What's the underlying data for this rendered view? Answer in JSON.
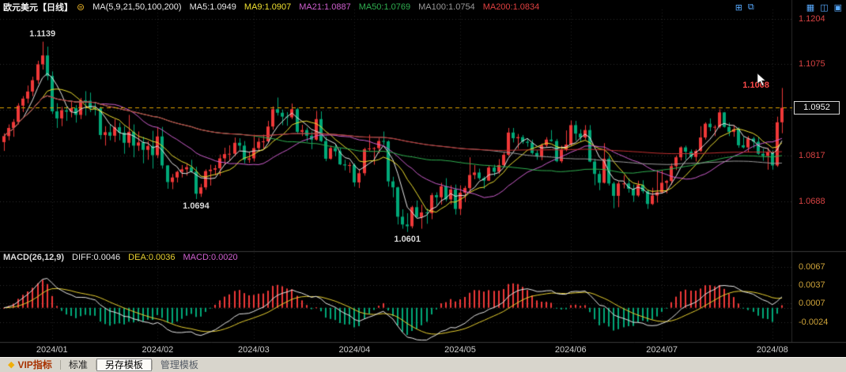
{
  "icons": {
    "period_menu": "⊜",
    "diamond": "◆",
    "add_window": "⊞",
    "pop_out": "⧉",
    "grid_layout": "▦",
    "split_layout": "◫",
    "single_layout": "▣"
  },
  "header": {
    "title": "欧元美元【日线】",
    "ma_label": "MA(5,9,21,50,100,200)",
    "ma_items": [
      {
        "text": "MA5:1.0949",
        "color": "#e8e8e8"
      },
      {
        "text": "MA9:1.0907",
        "color": "#efe030"
      },
      {
        "text": "MA21:1.0887",
        "color": "#cf5fcf"
      },
      {
        "text": "MA50:1.0769",
        "color": "#2faf50"
      },
      {
        "text": "MA100:1.0754",
        "color": "#9a9a9a"
      },
      {
        "text": "MA200:1.0834",
        "color": "#e04040"
      }
    ]
  },
  "macd_header": {
    "label": "MACD(26,12,9)",
    "items": [
      {
        "text": "DIFF:0.0046",
        "color": "#e8e8e8"
      },
      {
        "text": "DEA:0.0036",
        "color": "#e8d030"
      },
      {
        "text": "MACD:0.0020",
        "color": "#d060d0"
      }
    ]
  },
  "statusbar": {
    "tabs": [
      {
        "label": "VIP指标"
      },
      {
        "label": "标准"
      },
      {
        "label": "另存模板",
        "active": true
      },
      {
        "label": "管理模板"
      }
    ]
  },
  "chart_data": {
    "type": "candlestick",
    "symbol": "欧元美元",
    "period": "日线",
    "up_color": "#f03838",
    "down_color": "#00a878",
    "ma_periods": [
      5,
      9,
      21,
      50,
      100,
      200
    ],
    "ma_colors": [
      "#e8e8e8",
      "#efe030",
      "#cf5fcf",
      "#2faf50",
      "#9a9a9a",
      "#c23030"
    ],
    "macd_colors": {
      "diff": "#e8e8e8",
      "dea": "#e8d030"
    },
    "axis_colors": {
      "price": "#d84343",
      "time": "#cccccc",
      "macd": "#cfa43a"
    },
    "y_ticks": [
      1.1204,
      1.1075,
      1.0946,
      1.0817,
      1.0688
    ],
    "macd_ticks": [
      0.0067,
      0.0037,
      0.0007,
      -0.0024
    ],
    "x_ticks": [
      {
        "i": 10,
        "label": "2024/01"
      },
      {
        "i": 32,
        "label": "2024/02"
      },
      {
        "i": 52,
        "label": "2024/03"
      },
      {
        "i": 73,
        "label": "2024/04"
      },
      {
        "i": 95,
        "label": "2024/05"
      },
      {
        "i": 118,
        "label": "2024/06"
      },
      {
        "i": 137,
        "label": "2024/07"
      },
      {
        "i": 160,
        "label": "2024/08"
      }
    ],
    "reference_line": {
      "price": 1.0952,
      "color": "#e0a400",
      "style": "dashed"
    },
    "last_price": 1.0952,
    "last_price_label": "1.0952",
    "annotations": [
      {
        "i": 8,
        "price": 1.1139,
        "text": "1.1139",
        "pos": "above",
        "color": "#d8d8d8"
      },
      {
        "i": 40,
        "price": 1.0694,
        "text": "1.0694",
        "pos": "below",
        "color": "#d8d8d8"
      },
      {
        "i": 84,
        "price": 1.0601,
        "text": "1.0601",
        "pos": "below",
        "color": "#d8d8d8"
      },
      {
        "i": 162,
        "price": 1.1008,
        "text": "1.1008",
        "pos": "left",
        "color": "#ff4a4a"
      }
    ],
    "candles": [
      [
        1.0855,
        1.088,
        1.083,
        1.0872
      ],
      [
        1.0872,
        1.0905,
        1.086,
        1.0895
      ],
      [
        1.0895,
        1.092,
        1.087,
        1.0912
      ],
      [
        1.0912,
        1.0965,
        1.0905,
        1.0958
      ],
      [
        1.0958,
        1.0985,
        1.094,
        1.0978
      ],
      [
        1.0978,
        1.1015,
        1.0965,
        1.0998
      ],
      [
        1.0998,
        1.104,
        1.0985,
        1.103
      ],
      [
        1.103,
        1.1085,
        1.102,
        1.1075
      ],
      [
        1.1075,
        1.1139,
        1.106,
        1.11
      ],
      [
        1.11,
        1.1125,
        1.103,
        1.1042
      ],
      [
        1.1042,
        1.1055,
        1.0935,
        1.0942
      ],
      [
        1.0942,
        1.0965,
        1.0895,
        1.0922
      ],
      [
        1.0922,
        1.0955,
        1.09,
        1.0945
      ],
      [
        1.0945,
        1.0955,
        1.0915,
        1.0941
      ],
      [
        1.0941,
        1.097,
        1.0925,
        1.0951
      ],
      [
        1.0951,
        1.096,
        1.091,
        1.0932
      ],
      [
        1.0932,
        1.098,
        1.092,
        1.0973
      ],
      [
        1.0973,
        1.0999,
        1.093,
        1.0972
      ],
      [
        1.0972,
        1.0995,
        1.094,
        1.0951
      ],
      [
        1.0951,
        1.0967,
        1.093,
        1.095
      ],
      [
        1.095,
        1.0955,
        1.0863,
        1.0875
      ],
      [
        1.0875,
        1.09,
        1.0845,
        1.0883
      ],
      [
        1.0883,
        1.0905,
        1.086,
        1.0873
      ],
      [
        1.0873,
        1.092,
        1.0855,
        1.0897
      ],
      [
        1.0897,
        1.091,
        1.086,
        1.0882
      ],
      [
        1.0882,
        1.09,
        1.0822,
        1.0853
      ],
      [
        1.0853,
        1.0932,
        1.084,
        1.0884
      ],
      [
        1.0884,
        1.0905,
        1.0812,
        1.0845
      ],
      [
        1.0845,
        1.0885,
        1.083,
        1.0854
      ],
      [
        1.0854,
        1.087,
        1.0795,
        1.0833
      ],
      [
        1.0833,
        1.0858,
        1.0805,
        1.0844
      ],
      [
        1.0844,
        1.0887,
        1.078,
        1.0818
      ],
      [
        1.0818,
        1.0897,
        1.081,
        1.0871
      ],
      [
        1.0871,
        1.0898,
        1.078,
        1.0789
      ],
      [
        1.0789,
        1.079,
        1.0723,
        1.0742
      ],
      [
        1.0742,
        1.0765,
        1.0722,
        1.0755
      ],
      [
        1.0755,
        1.0774,
        1.0741,
        1.0771
      ],
      [
        1.0771,
        1.079,
        1.0755,
        1.0778
      ],
      [
        1.0778,
        1.0795,
        1.076,
        1.0784
      ],
      [
        1.0784,
        1.0805,
        1.0768,
        1.0772
      ],
      [
        1.0772,
        1.0785,
        1.0694,
        1.0709
      ],
      [
        1.0709,
        1.0737,
        1.07,
        1.0727
      ],
      [
        1.0727,
        1.0778,
        1.072,
        1.0773
      ],
      [
        1.0773,
        1.0791,
        1.0732,
        1.0777
      ],
      [
        1.0777,
        1.079,
        1.0761,
        1.0781
      ],
      [
        1.0781,
        1.082,
        1.076,
        1.0809
      ],
      [
        1.0809,
        1.0839,
        1.079,
        1.0821
      ],
      [
        1.0821,
        1.0846,
        1.0802,
        1.0822
      ],
      [
        1.0822,
        1.0868,
        1.0815,
        1.0853
      ],
      [
        1.0853,
        1.0866,
        1.0832,
        1.0845
      ],
      [
        1.0845,
        1.0858,
        1.0795,
        1.0805
      ],
      [
        1.0805,
        1.0826,
        1.0796,
        1.0809
      ],
      [
        1.0809,
        1.0876,
        1.08,
        1.0838
      ],
      [
        1.0838,
        1.0867,
        1.083,
        1.0856
      ],
      [
        1.0856,
        1.0876,
        1.0837,
        1.0857
      ],
      [
        1.0857,
        1.0915,
        1.0852,
        1.0899
      ],
      [
        1.0899,
        1.0956,
        1.089,
        1.0948
      ],
      [
        1.0948,
        1.0981,
        1.093,
        1.0938
      ],
      [
        1.0938,
        1.0947,
        1.0903,
        1.0927
      ],
      [
        1.0927,
        1.094,
        1.0901,
        1.0925
      ],
      [
        1.0925,
        1.0964,
        1.092,
        1.0948
      ],
      [
        1.0948,
        1.0952,
        1.0879,
        1.0884
      ],
      [
        1.0884,
        1.0904,
        1.0872,
        1.0889
      ],
      [
        1.0889,
        1.0896,
        1.0856,
        1.0873
      ],
      [
        1.0873,
        1.0885,
        1.0835,
        1.0862
      ],
      [
        1.0862,
        1.0943,
        1.0859,
        1.092
      ],
      [
        1.092,
        1.0942,
        1.0855,
        1.0858
      ],
      [
        1.0858,
        1.087,
        1.0801,
        1.0808
      ],
      [
        1.0808,
        1.0845,
        1.0805,
        1.0838
      ],
      [
        1.0838,
        1.0848,
        1.0815,
        1.0829
      ],
      [
        1.0829,
        1.0838,
        1.079,
        1.0792
      ],
      [
        1.0792,
        1.0805,
        1.0775,
        1.0789
      ],
      [
        1.0789,
        1.0798,
        1.0768,
        1.079
      ],
      [
        1.079,
        1.0795,
        1.073,
        1.0741
      ],
      [
        1.0741,
        1.0779,
        1.0725,
        1.0767
      ],
      [
        1.0767,
        1.0839,
        1.076,
        1.0835
      ],
      [
        1.0835,
        1.0876,
        1.083,
        1.0837
      ],
      [
        1.0837,
        1.0841,
        1.0791,
        1.0838
      ],
      [
        1.0838,
        1.0867,
        1.0823,
        1.0858
      ],
      [
        1.0858,
        1.0885,
        1.0847,
        1.0857
      ],
      [
        1.0857,
        1.086,
        1.0729,
        1.0744
      ],
      [
        1.0744,
        1.0757,
        1.0699,
        1.0727
      ],
      [
        1.0727,
        1.0729,
        1.0622,
        1.0644
      ],
      [
        1.0644,
        1.0665,
        1.061,
        1.0622
      ],
      [
        1.0622,
        1.0654,
        1.0601,
        1.0617
      ],
      [
        1.0617,
        1.0675,
        1.0611,
        1.0671
      ],
      [
        1.0671,
        1.069,
        1.0642,
        1.0643
      ],
      [
        1.0643,
        1.0678,
        1.061,
        1.0656
      ],
      [
        1.0656,
        1.0667,
        1.0624,
        1.0654
      ],
      [
        1.0654,
        1.0711,
        1.0637,
        1.0705
      ],
      [
        1.0705,
        1.0713,
        1.0677,
        1.0699
      ],
      [
        1.0699,
        1.074,
        1.0678,
        1.073
      ],
      [
        1.073,
        1.0753,
        1.0688,
        1.0693
      ],
      [
        1.0693,
        1.0733,
        1.0679,
        1.0721
      ],
      [
        1.0721,
        1.0735,
        1.065,
        1.0666
      ],
      [
        1.0666,
        1.0733,
        1.0649,
        1.0712
      ],
      [
        1.0712,
        1.0731,
        1.0685,
        1.0725
      ],
      [
        1.0725,
        1.0812,
        1.071,
        1.0762
      ],
      [
        1.0762,
        1.079,
        1.075,
        1.0769
      ],
      [
        1.0769,
        1.078,
        1.0748,
        1.0753
      ],
      [
        1.0753,
        1.0758,
        1.0723,
        1.0746
      ],
      [
        1.0746,
        1.0789,
        1.0745,
        1.0783
      ],
      [
        1.0783,
        1.0791,
        1.0759,
        1.0771
      ],
      [
        1.0771,
        1.0807,
        1.0765,
        1.079
      ],
      [
        1.079,
        1.0826,
        1.0785,
        1.0819
      ],
      [
        1.0819,
        1.0895,
        1.0815,
        1.0882
      ],
      [
        1.0882,
        1.0895,
        1.0854,
        1.0866
      ],
      [
        1.0866,
        1.0878,
        1.0836,
        1.0869
      ],
      [
        1.0869,
        1.0875,
        1.085,
        1.0856
      ],
      [
        1.0856,
        1.0866,
        1.0842,
        1.0853
      ],
      [
        1.0853,
        1.0862,
        1.082,
        1.0824
      ],
      [
        1.0824,
        1.0832,
        1.0805,
        1.0814
      ],
      [
        1.0814,
        1.0851,
        1.0804,
        1.0846
      ],
      [
        1.0846,
        1.0869,
        1.084,
        1.0862
      ],
      [
        1.0862,
        1.0889,
        1.0856,
        1.0858
      ],
      [
        1.0858,
        1.0864,
        1.0798,
        1.0801
      ],
      [
        1.0801,
        1.0845,
        1.0796,
        1.0834
      ],
      [
        1.0834,
        1.0888,
        1.0829,
        1.0848
      ],
      [
        1.0848,
        1.0916,
        1.0843,
        1.0903
      ],
      [
        1.0903,
        1.0915,
        1.0859,
        1.0879
      ],
      [
        1.0879,
        1.0891,
        1.0855,
        1.0868
      ],
      [
        1.0868,
        1.0903,
        1.0862,
        1.0889
      ],
      [
        1.0889,
        1.0903,
        1.0798,
        1.08
      ],
      [
        1.08,
        1.0808,
        1.0733,
        1.0765
      ],
      [
        1.0765,
        1.0774,
        1.0719,
        1.074
      ],
      [
        1.074,
        1.0852,
        1.0738,
        1.0808
      ],
      [
        1.0808,
        1.0815,
        1.0732,
        1.0738
      ],
      [
        1.0738,
        1.0743,
        1.0668,
        1.0703
      ],
      [
        1.0703,
        1.0744,
        1.0671,
        1.0738
      ],
      [
        1.0738,
        1.0761,
        1.0724,
        1.0738
      ],
      [
        1.0738,
        1.0753,
        1.0712,
        1.0723
      ],
      [
        1.0723,
        1.0735,
        1.0686,
        1.0704
      ],
      [
        1.0704,
        1.0746,
        1.07,
        1.0734
      ],
      [
        1.0734,
        1.0747,
        1.071,
        1.0716
      ],
      [
        1.0716,
        1.0721,
        1.0666,
        1.068
      ],
      [
        1.068,
        1.0726,
        1.0677,
        1.0704
      ],
      [
        1.0704,
        1.0776,
        1.0684,
        1.0713
      ],
      [
        1.0713,
        1.0776,
        1.0709,
        1.074
      ],
      [
        1.074,
        1.0748,
        1.071,
        1.0745
      ],
      [
        1.0745,
        1.0795,
        1.0735,
        1.0787
      ],
      [
        1.0787,
        1.0817,
        1.0776,
        1.0812
      ],
      [
        1.0812,
        1.0843,
        1.0803,
        1.084
      ],
      [
        1.084,
        1.0845,
        1.0805,
        1.0828
      ],
      [
        1.0828,
        1.0834,
        1.0807,
        1.0813
      ],
      [
        1.0813,
        1.0835,
        1.08,
        1.083
      ],
      [
        1.083,
        1.09,
        1.0827,
        1.0868
      ],
      [
        1.0868,
        1.0911,
        1.0862,
        1.0907
      ],
      [
        1.0907,
        1.0922,
        1.0886,
        1.0897
      ],
      [
        1.0897,
        1.0903,
        1.0872,
        1.0898
      ],
      [
        1.0898,
        1.0948,
        1.0894,
        1.0939
      ],
      [
        1.0939,
        1.094,
        1.0896,
        1.0898
      ],
      [
        1.0898,
        1.091,
        1.0872,
        1.0884
      ],
      [
        1.0884,
        1.0903,
        1.087,
        1.0891
      ],
      [
        1.0891,
        1.0897,
        1.0839,
        1.0846
      ],
      [
        1.0846,
        1.087,
        1.0837,
        1.084
      ],
      [
        1.084,
        1.0872,
        1.0826,
        1.0865
      ],
      [
        1.0865,
        1.087,
        1.0838,
        1.0856
      ],
      [
        1.0856,
        1.0869,
        1.0819,
        1.0822
      ],
      [
        1.0822,
        1.0836,
        1.0802,
        1.0816
      ],
      [
        1.0816,
        1.0839,
        1.0777,
        1.0826
      ],
      [
        1.0826,
        1.0832,
        1.0777,
        1.0789
      ],
      [
        1.0789,
        1.0927,
        1.0785,
        1.0911
      ],
      [
        1.0911,
        1.1008,
        1.088,
        1.0952
      ]
    ]
  }
}
